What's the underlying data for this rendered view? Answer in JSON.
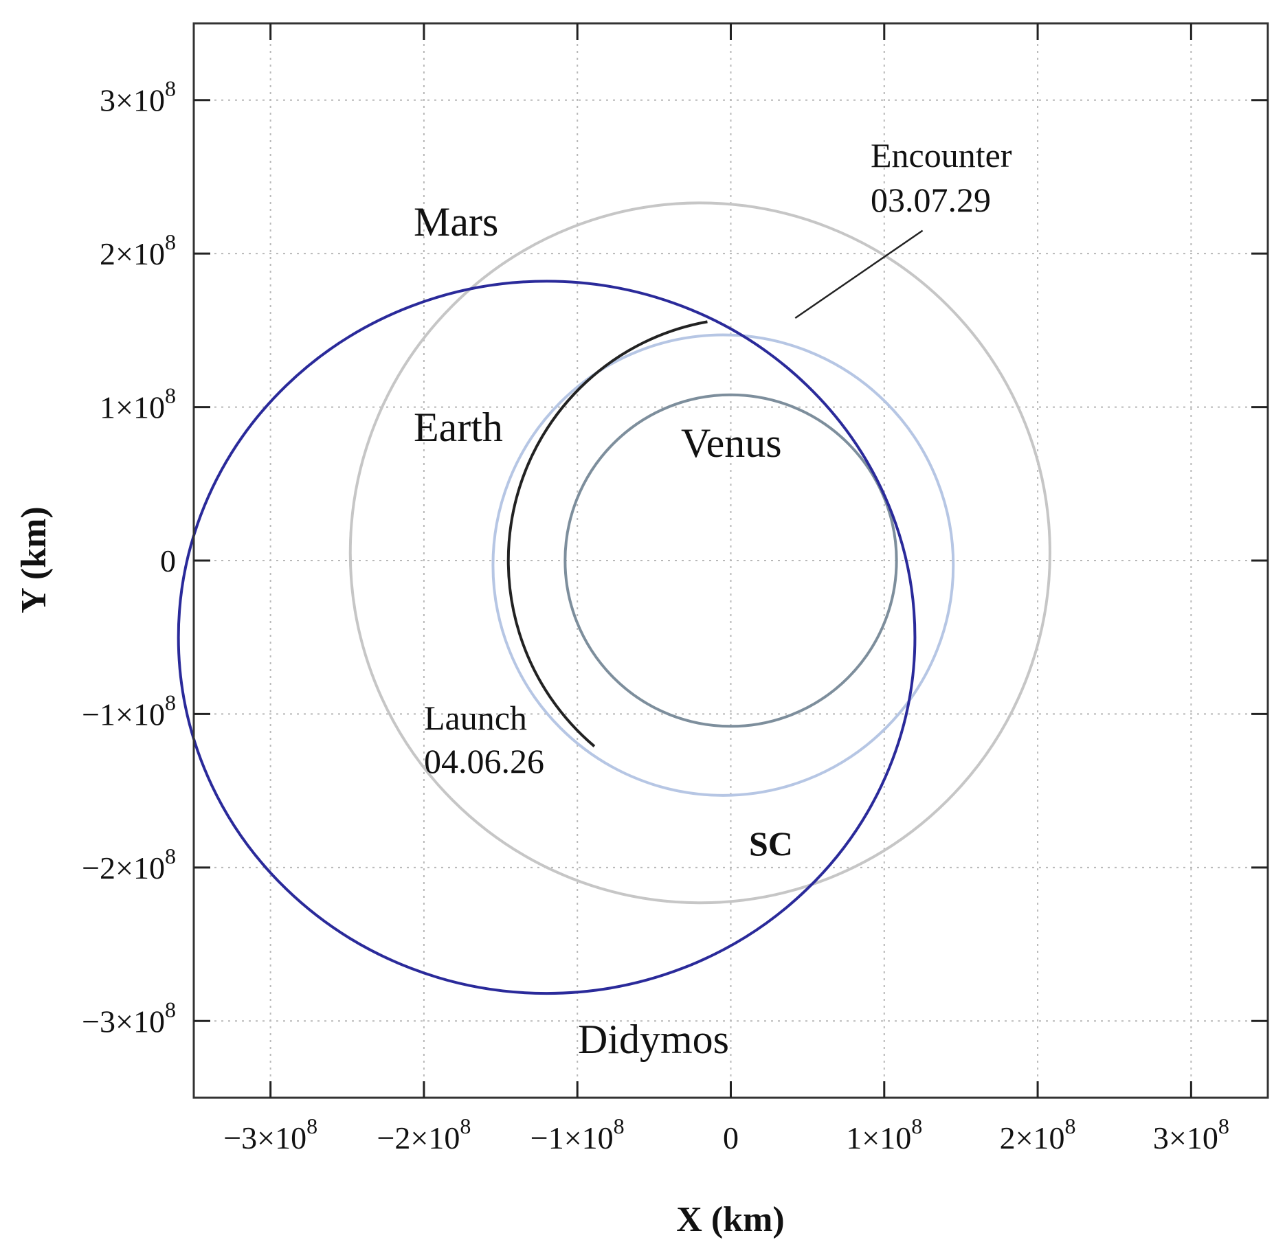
{
  "chart_data": {
    "type": "line",
    "xlabel": "X (km)",
    "ylabel": "Y (km)",
    "xlim": [
      -350000000,
      350000000
    ],
    "ylim": [
      -350000000,
      350000000
    ],
    "grid": true,
    "ticks": [
      {
        "value": -300000000,
        "mantissa": "−3×10",
        "exp": "8"
      },
      {
        "value": -200000000,
        "mantissa": "−2×10",
        "exp": "8"
      },
      {
        "value": -100000000,
        "mantissa": "−1×10",
        "exp": "8"
      },
      {
        "value": 0,
        "mantissa": "0",
        "exp": ""
      },
      {
        "value": 100000000,
        "mantissa": "1×10",
        "exp": "8"
      },
      {
        "value": 200000000,
        "mantissa": "2×10",
        "exp": "8"
      },
      {
        "value": 300000000,
        "mantissa": "3×10",
        "exp": "8"
      }
    ],
    "orbits": [
      {
        "name": "Mars",
        "color": "#c6c6c6",
        "cx": -20000000,
        "cy": 5000000,
        "rx": 228000000,
        "ry": 228000000
      },
      {
        "name": "Earth",
        "color": "#b6c6e4",
        "cx": -5000000,
        "cy": -3000000,
        "rx": 150000000,
        "ry": 150000000
      },
      {
        "name": "Venus",
        "color": "#7d8e9c",
        "cx": 0,
        "cy": 0,
        "rx": 108000000,
        "ry": 108000000
      },
      {
        "name": "Didymos",
        "color": "#2a2a9a",
        "cx": -120000000,
        "cy": -50000000,
        "rx": 240000000,
        "ry": 232000000
      }
    ],
    "trajectory": {
      "name": "SC",
      "color": "#222222",
      "cx": 12000000,
      "cy": 0,
      "rx": 157000000,
      "ry": 158000000,
      "start_angle_deg": -130,
      "end_angle_deg": 100
    },
    "events": {
      "launch": {
        "line1": "Launch",
        "line2": "04.06.26"
      },
      "encounter": {
        "line1": "Encounter",
        "line2": "03.07.29",
        "point": [
          42000000,
          158000000
        ],
        "label_anchor": [
          125000000,
          215000000
        ]
      }
    },
    "labels": {
      "mars": "Mars",
      "earth": "Earth",
      "venus": "Venus",
      "didymos": "Didymos",
      "sc": "SC"
    }
  }
}
